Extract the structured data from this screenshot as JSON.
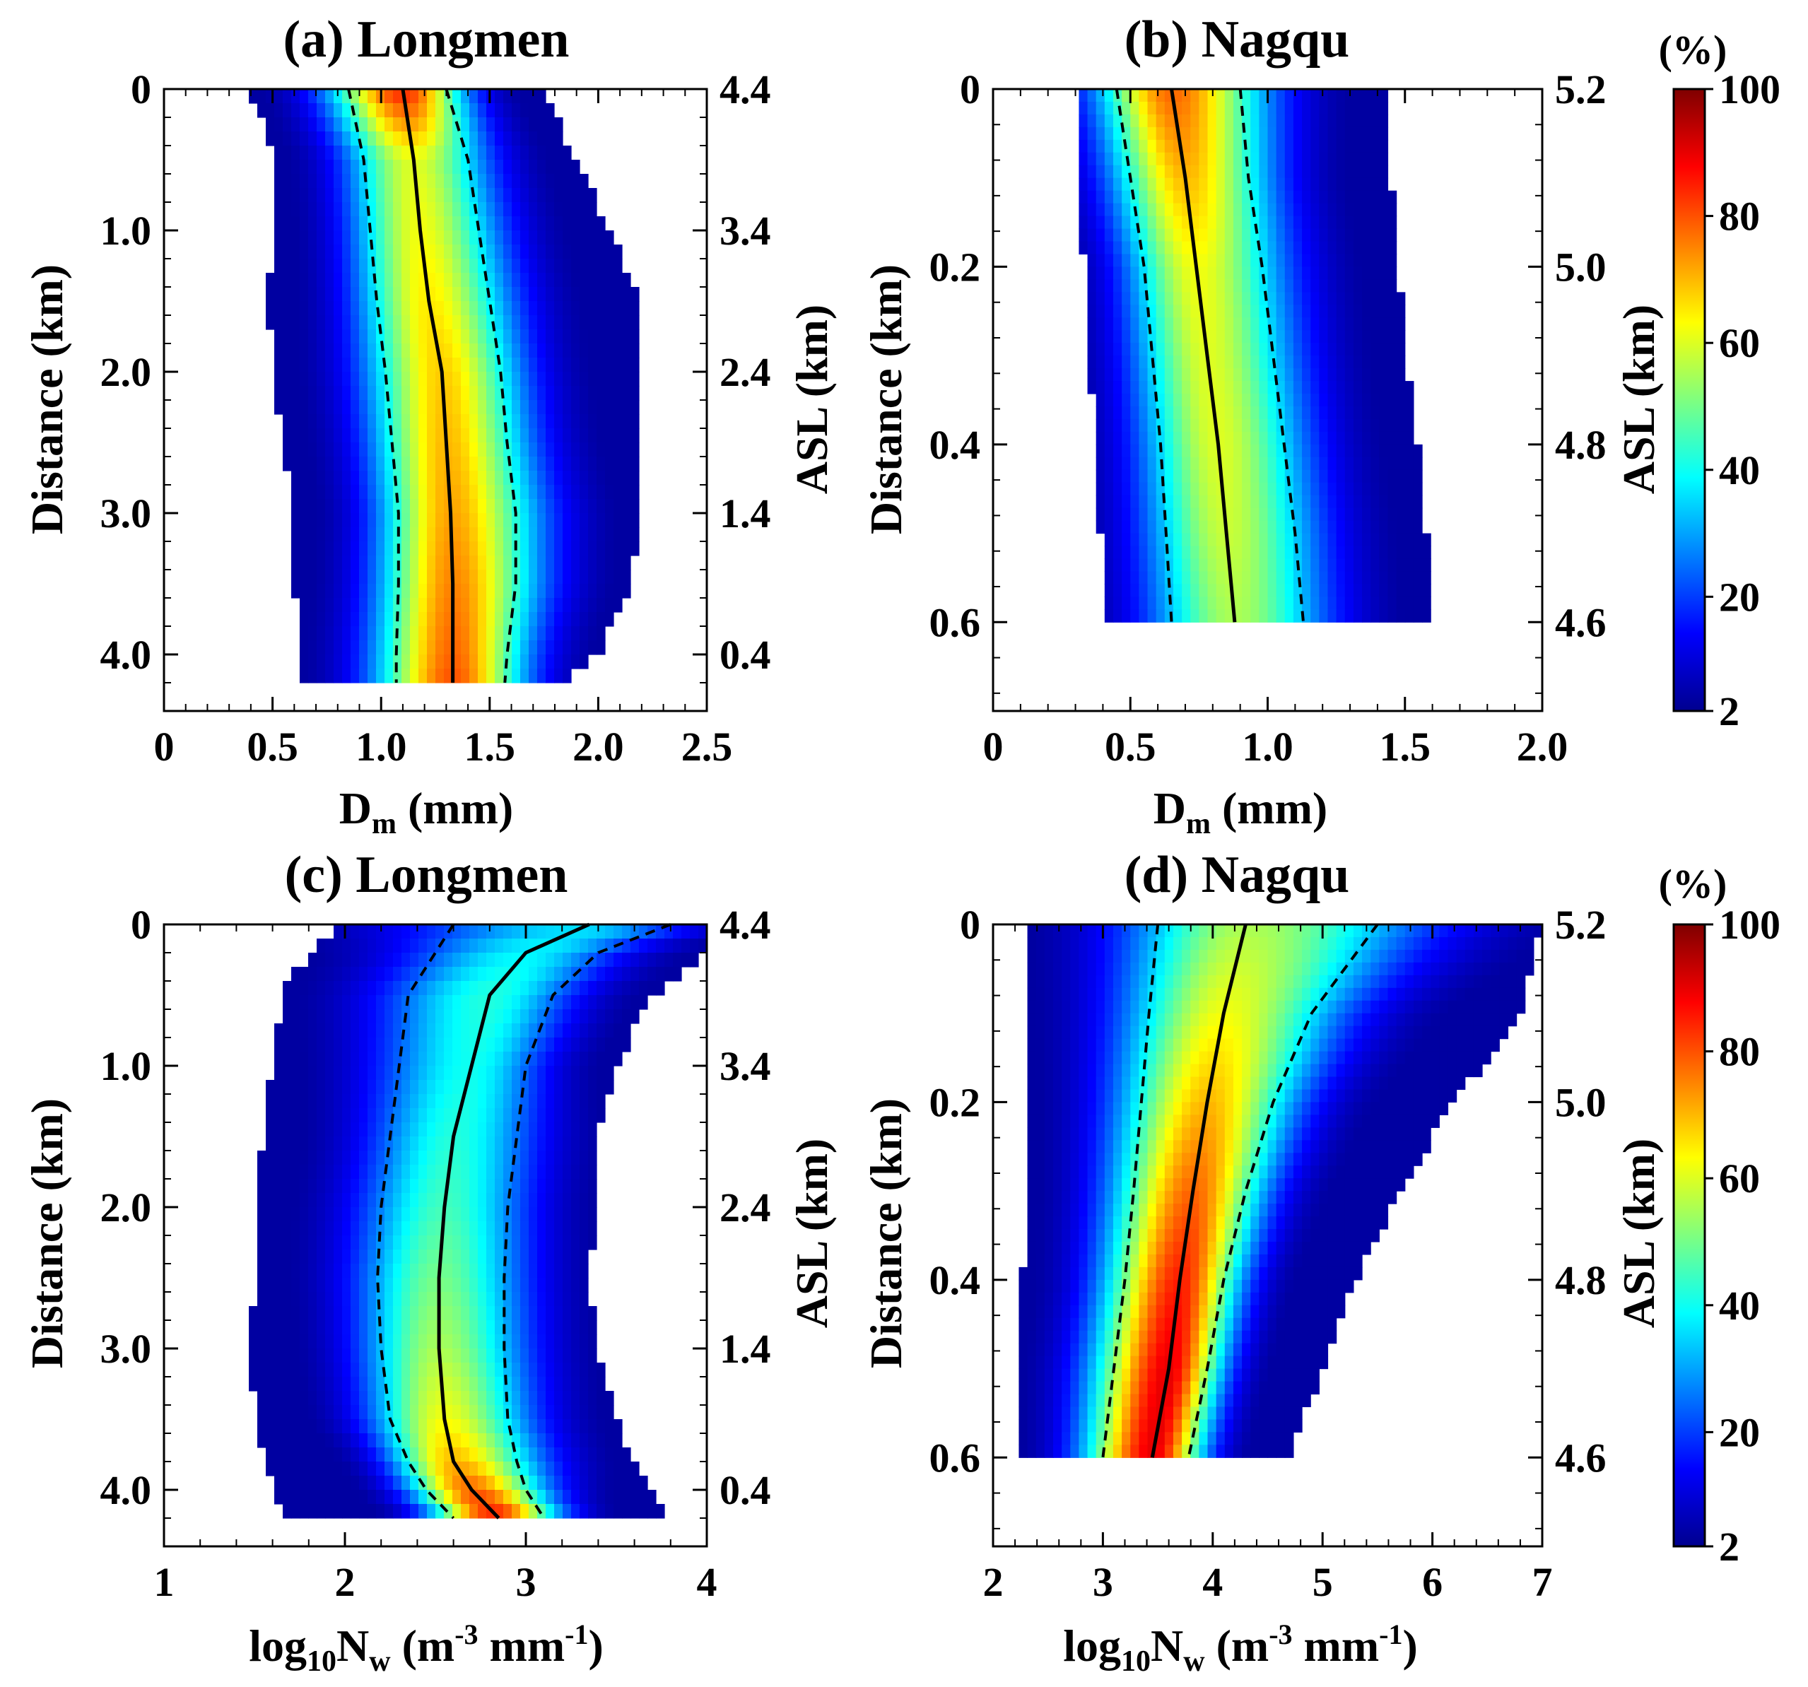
{
  "colors": {
    "colormap": [
      "#00008f",
      "#0000ff",
      "#007fff",
      "#00ffff",
      "#7fff7f",
      "#ffff00",
      "#ff7f00",
      "#ff0000",
      "#7f0000"
    ],
    "median_line": "#000000",
    "percentile_line": "#000000"
  },
  "colorbar": {
    "unit_label": "(%)",
    "ticks": [
      2,
      20,
      40,
      60,
      80,
      100
    ],
    "range": [
      2,
      100
    ]
  },
  "chart_data": [
    {
      "id": "a",
      "type": "heatmap",
      "title": "(a) Longmen",
      "xlabel": "D_m (mm)",
      "ylabel": "Distance (km)",
      "ylabel_right": "ASL (km)",
      "xlim": [
        0,
        2.5
      ],
      "ylim": [
        0,
        4.4
      ],
      "xticks": [
        0,
        0.5,
        1.0,
        1.5,
        2.0,
        2.5
      ],
      "xtick_labels": [
        "0",
        "0.5",
        "1.0",
        "1.5",
        "2.0",
        "2.5"
      ],
      "yticks": [
        0,
        1.0,
        2.0,
        3.0,
        4.0
      ],
      "ytick_labels": [
        "0",
        "1.0",
        "2.0",
        "3.0",
        "4.0"
      ],
      "right_ticks": [
        0,
        1.0,
        2.0,
        3.0,
        4.0
      ],
      "right_tick_labels": [
        "4.4",
        "3.4",
        "2.4",
        "1.4",
        "0.4"
      ],
      "y_data_max": 4.2,
      "profile_y": [
        0,
        0.5,
        1.0,
        1.5,
        2.0,
        2.5,
        3.0,
        3.5,
        4.0,
        4.2
      ],
      "median": [
        1.1,
        1.15,
        1.18,
        1.22,
        1.28,
        1.3,
        1.32,
        1.33,
        1.33,
        1.33
      ],
      "p25": [
        0.85,
        0.92,
        0.95,
        0.98,
        1.02,
        1.05,
        1.08,
        1.08,
        1.07,
        1.07
      ],
      "p75": [
        1.3,
        1.4,
        1.45,
        1.5,
        1.55,
        1.58,
        1.62,
        1.62,
        1.58,
        1.57
      ],
      "outer_left": [
        0.4,
        0.5,
        0.5,
        0.48,
        0.5,
        0.55,
        0.6,
        0.6,
        0.62,
        0.62
      ],
      "outer_right": [
        1.75,
        1.9,
        2.05,
        2.2,
        2.2,
        2.2,
        2.2,
        2.15,
        2.0,
        1.85
      ],
      "peak_profile": [
        85,
        60,
        62,
        65,
        68,
        70,
        72,
        75,
        78,
        80
      ]
    },
    {
      "id": "b",
      "type": "heatmap",
      "title": "(b) Nagqu",
      "xlabel": "D_m (mm)",
      "ylabel": "Distance (km)",
      "ylabel_right": "ASL (km)",
      "xlim": [
        0,
        2.0
      ],
      "ylim": [
        0,
        0.7
      ],
      "xticks": [
        0,
        0.5,
        1.0,
        1.5,
        2.0
      ],
      "xtick_labels": [
        "0",
        "0.5",
        "1.0",
        "1.5",
        "2.0"
      ],
      "yticks": [
        0,
        0.2,
        0.4,
        0.6
      ],
      "ytick_labels": [
        "0",
        "0.2",
        "0.4",
        "0.6"
      ],
      "right_ticks": [
        0,
        0.2,
        0.4,
        0.6
      ],
      "right_tick_labels": [
        "5.2",
        "5.0",
        "4.8",
        "4.6"
      ],
      "y_data_max": 0.6,
      "profile_y": [
        0,
        0.1,
        0.2,
        0.3,
        0.4,
        0.5,
        0.6
      ],
      "median": [
        0.65,
        0.7,
        0.74,
        0.78,
        0.82,
        0.85,
        0.88
      ],
      "p25": [
        0.45,
        0.5,
        0.55,
        0.58,
        0.61,
        0.63,
        0.65
      ],
      "p75": [
        0.9,
        0.93,
        0.98,
        1.02,
        1.06,
        1.1,
        1.13
      ],
      "outer_left": [
        0.3,
        0.32,
        0.33,
        0.35,
        0.37,
        0.39,
        0.4
      ],
      "outer_right": [
        1.45,
        1.45,
        1.48,
        1.5,
        1.55,
        1.58,
        1.6
      ],
      "peak_profile": [
        78,
        70,
        62,
        60,
        60,
        58,
        55
      ]
    },
    {
      "id": "c",
      "type": "heatmap",
      "title": "(c) Longmen",
      "xlabel": "log10 N_w (m^-3 mm^-1)",
      "ylabel": "Distance (km)",
      "ylabel_right": "ASL (km)",
      "xlim": [
        1,
        4
      ],
      "ylim": [
        0,
        4.4
      ],
      "xticks": [
        1,
        2,
        3,
        4
      ],
      "xtick_labels": [
        "1",
        "2",
        "3",
        "4"
      ],
      "yticks": [
        0,
        1.0,
        2.0,
        3.0,
        4.0
      ],
      "ytick_labels": [
        "0",
        "1.0",
        "2.0",
        "3.0",
        "4.0"
      ],
      "right_ticks": [
        0,
        1.0,
        2.0,
        3.0,
        4.0
      ],
      "right_tick_labels": [
        "4.4",
        "3.4",
        "2.4",
        "1.4",
        "0.4"
      ],
      "y_data_max": 4.2,
      "profile_y": [
        0,
        0.2,
        0.5,
        1.0,
        1.5,
        2.0,
        2.5,
        3.0,
        3.5,
        3.8,
        4.0,
        4.2
      ],
      "median": [
        3.35,
        3.0,
        2.8,
        2.7,
        2.6,
        2.55,
        2.52,
        2.52,
        2.55,
        2.6,
        2.7,
        2.85
      ],
      "p25": [
        2.6,
        2.5,
        2.35,
        2.3,
        2.25,
        2.2,
        2.18,
        2.2,
        2.25,
        2.35,
        2.45,
        2.6
      ],
      "p75": [
        3.8,
        3.4,
        3.15,
        3.0,
        2.95,
        2.9,
        2.88,
        2.88,
        2.9,
        2.95,
        3.0,
        3.1
      ],
      "outer_left": [
        2.0,
        1.8,
        1.65,
        1.6,
        1.55,
        1.5,
        1.5,
        1.48,
        1.5,
        1.55,
        1.6,
        1.65
      ],
      "outer_right": [
        4.0,
        4.0,
        3.7,
        3.5,
        3.4,
        3.4,
        3.35,
        3.4,
        3.5,
        3.6,
        3.7,
        3.8
      ],
      "peak_profile": [
        35,
        38,
        42,
        40,
        42,
        45,
        50,
        55,
        62,
        70,
        78,
        85
      ]
    },
    {
      "id": "d",
      "type": "heatmap",
      "title": "(d) Nagqu",
      "xlabel": "log10 N_w (m^-3 mm^-1)",
      "ylabel": "Distance (km)",
      "ylabel_right": "ASL (km)",
      "xlim": [
        2,
        7
      ],
      "ylim": [
        0,
        0.7
      ],
      "xticks": [
        2,
        3,
        4,
        5,
        6,
        7
      ],
      "xtick_labels": [
        "2",
        "3",
        "4",
        "5",
        "6",
        "7"
      ],
      "yticks": [
        0,
        0.2,
        0.4,
        0.6
      ],
      "ytick_labels": [
        "0",
        "0.2",
        "0.4",
        "0.6"
      ],
      "right_ticks": [
        0,
        0.2,
        0.4,
        0.6
      ],
      "right_tick_labels": [
        "5.2",
        "5.0",
        "4.8",
        "4.6"
      ],
      "y_data_max": 0.6,
      "profile_y": [
        0,
        0.1,
        0.2,
        0.3,
        0.4,
        0.5,
        0.6
      ],
      "median": [
        4.3,
        4.1,
        3.95,
        3.82,
        3.7,
        3.6,
        3.45
      ],
      "p25": [
        3.5,
        3.42,
        3.35,
        3.28,
        3.2,
        3.1,
        3.0
      ],
      "p75": [
        5.5,
        4.9,
        4.55,
        4.3,
        4.1,
        3.95,
        3.78
      ],
      "outer_left": [
        2.35,
        2.35,
        2.3,
        2.3,
        2.27,
        2.25,
        2.25
      ],
      "outer_right": [
        7.0,
        6.8,
        6.2,
        5.7,
        5.3,
        5.0,
        4.7
      ],
      "peak_profile": [
        55,
        62,
        70,
        78,
        85,
        90,
        90
      ]
    }
  ]
}
